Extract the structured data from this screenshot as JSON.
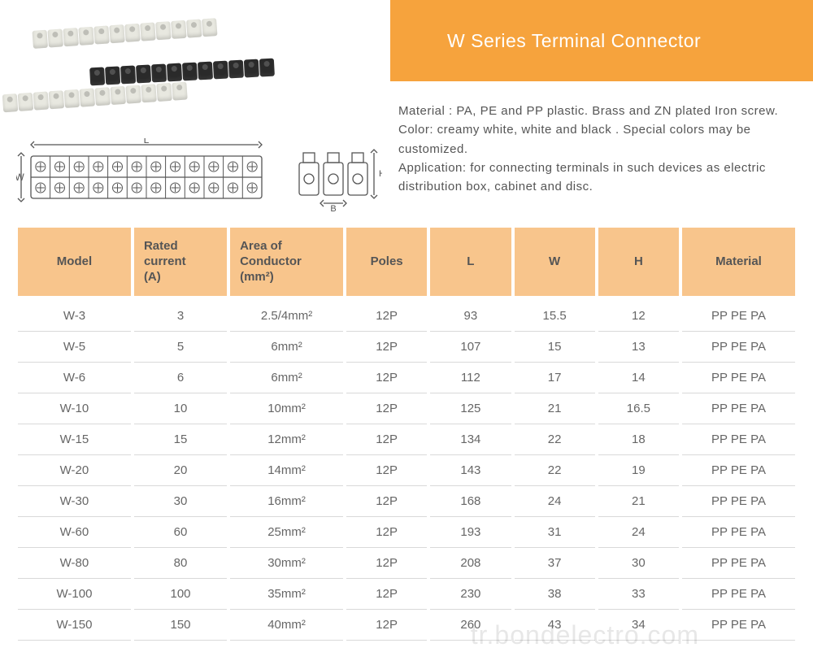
{
  "title": "W Series Terminal Connector",
  "description_lines": [
    "Material : PA, PE and PP plastic. Brass and ZN plated Iron screw.",
    "Color: creamy white, white and black . Special colors may be customized.",
    "Application: for connecting terminals in such devices as electric distribution box, cabinet and disc."
  ],
  "diagram_labels": {
    "L": "L",
    "W": "W",
    "H": "H",
    "B": "B"
  },
  "colors": {
    "banner_bg": "#f6a33d",
    "banner_text": "#ffffff",
    "header_bg": "#f8c58c",
    "text": "#555555",
    "cell_text": "#666666",
    "row_border": "#d9d9d9",
    "background": "#ffffff"
  },
  "table": {
    "columns": [
      {
        "key": "model",
        "label": "Model"
      },
      {
        "key": "current",
        "label": "Rated\ncurrent\n(A)"
      },
      {
        "key": "area",
        "label": "Area of\nConductor\n(mm²)"
      },
      {
        "key": "poles",
        "label": "Poles"
      },
      {
        "key": "l",
        "label": "L"
      },
      {
        "key": "w",
        "label": "W"
      },
      {
        "key": "h",
        "label": "H"
      },
      {
        "key": "mat",
        "label": "Material"
      }
    ],
    "rows": [
      {
        "model": "W-3",
        "current": "3",
        "area": "2.5/4mm²",
        "poles": "12P",
        "l": "93",
        "w": "15.5",
        "h": "12",
        "mat": "PP PE PA"
      },
      {
        "model": "W-5",
        "current": "5",
        "area": "6mm²",
        "poles": "12P",
        "l": "107",
        "w": "15",
        "h": "13",
        "mat": "PP PE PA"
      },
      {
        "model": "W-6",
        "current": "6",
        "area": "6mm²",
        "poles": "12P",
        "l": "112",
        "w": "17",
        "h": "14",
        "mat": "PP PE PA"
      },
      {
        "model": "W-10",
        "current": "10",
        "area": "10mm²",
        "poles": "12P",
        "l": "125",
        "w": "21",
        "h": "16.5",
        "mat": "PP PE PA"
      },
      {
        "model": "W-15",
        "current": "15",
        "area": "12mm²",
        "poles": "12P",
        "l": "134",
        "w": "22",
        "h": "18",
        "mat": "PP PE PA"
      },
      {
        "model": "W-20",
        "current": "20",
        "area": "14mm²",
        "poles": "12P",
        "l": "143",
        "w": "22",
        "h": "19",
        "mat": "PP PE PA"
      },
      {
        "model": "W-30",
        "current": "30",
        "area": "16mm²",
        "poles": "12P",
        "l": "168",
        "w": "24",
        "h": "21",
        "mat": "PP PE PA"
      },
      {
        "model": "W-60",
        "current": "60",
        "area": "25mm²",
        "poles": "12P",
        "l": "193",
        "w": "31",
        "h": "24",
        "mat": "PP PE PA"
      },
      {
        "model": "W-80",
        "current": "80",
        "area": "30mm²",
        "poles": "12P",
        "l": "208",
        "w": "37",
        "h": "30",
        "mat": "PP PE PA"
      },
      {
        "model": "W-100",
        "current": "100",
        "area": "35mm²",
        "poles": "12P",
        "l": "230",
        "w": "38",
        "h": "33",
        "mat": "PP PE PA"
      },
      {
        "model": "W-150",
        "current": "150",
        "area": "40mm²",
        "poles": "12P",
        "l": "260",
        "w": "43",
        "h": "34",
        "mat": "PP PE PA"
      }
    ]
  },
  "watermark": "tr.bondelectro.com"
}
